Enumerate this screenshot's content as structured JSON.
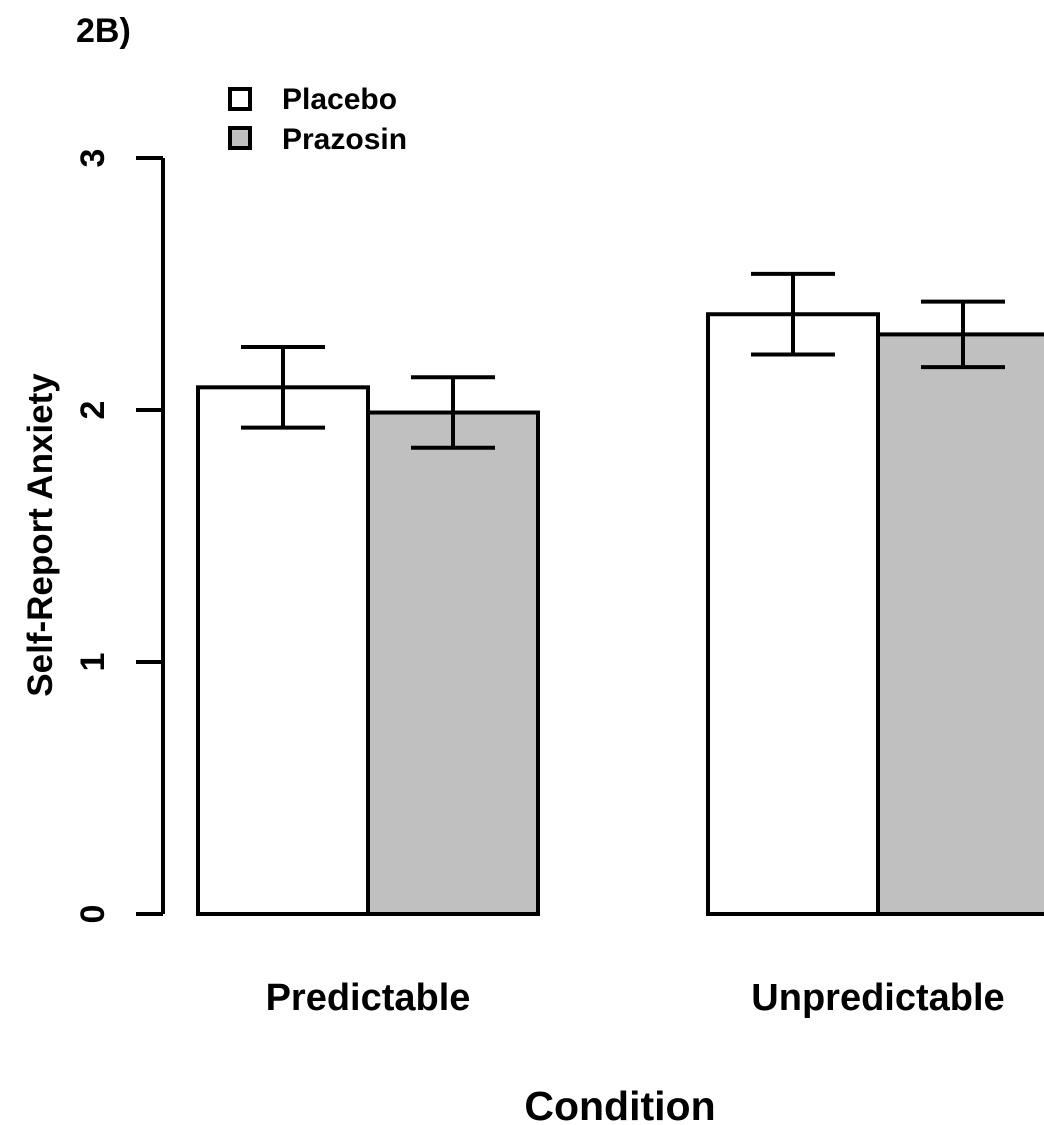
{
  "panel_label": "2B)",
  "colors": {
    "placebo": "#ffffff",
    "prazosin": "#c0c0c0",
    "stroke": "#000000"
  },
  "chart_data": {
    "type": "bar",
    "title": "",
    "xlabel": "Condition",
    "ylabel": "Self-Report Anxiety",
    "categories": [
      "Predictable",
      "Unpredictable"
    ],
    "ylim": [
      0,
      3
    ],
    "yticks": [
      0,
      1,
      2,
      3
    ],
    "series": [
      {
        "name": "Placebo",
        "color": "#ffffff",
        "values": [
          2.09,
          2.38
        ],
        "error": [
          0.16,
          0.16
        ]
      },
      {
        "name": "Prazosin",
        "color": "#c0c0c0",
        "values": [
          1.99,
          2.3
        ],
        "error": [
          0.14,
          0.13
        ]
      }
    ],
    "legend": {
      "position": "top-left",
      "entries": [
        "Placebo",
        "Prazosin"
      ]
    },
    "grid": false,
    "error_bars": true
  }
}
